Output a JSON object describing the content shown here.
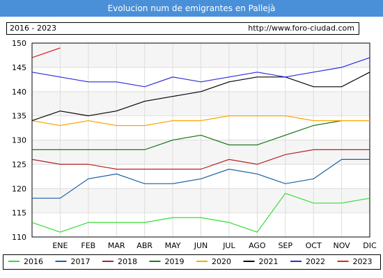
{
  "header": {
    "title": "Evolucion num de emigrantes en Pallejà"
  },
  "info": {
    "range": "2016 - 2023",
    "url": "http://www.foro-ciudad.com"
  },
  "chart_data": {
    "type": "line",
    "title": "Evolucion num de emigrantes en Pallejà",
    "xlabel": "",
    "ylabel": "",
    "categories": [
      "ENE",
      "FEB",
      "MAR",
      "ABR",
      "MAY",
      "JUN",
      "JUL",
      "AGO",
      "SEP",
      "OCT",
      "NOV",
      "DIC"
    ],
    "ylim": [
      110,
      150
    ],
    "yticks": [
      110,
      115,
      120,
      125,
      130,
      135,
      140,
      145,
      150
    ],
    "grid": true,
    "legend_position": "bottom",
    "series": [
      {
        "name": "2016",
        "color": "#33dd33",
        "values": [
          111,
          113,
          113,
          113,
          114,
          114,
          113,
          111,
          119,
          117,
          117,
          118
        ],
        "start": 113
      },
      {
        "name": "2017",
        "color": "#1a5fa3",
        "values": [
          118,
          122,
          123,
          121,
          121,
          122,
          124,
          123,
          121,
          122,
          126,
          126
        ],
        "start": 118
      },
      {
        "name": "2018",
        "color": "#b22222",
        "values": [
          125,
          125,
          124,
          124,
          124,
          124,
          126,
          125,
          127,
          128,
          128,
          128
        ],
        "start": 126
      },
      {
        "name": "2019",
        "color": "#1a7a1a",
        "values": [
          128,
          128,
          128,
          128,
          130,
          131,
          129,
          129,
          131,
          133,
          134,
          null
        ],
        "start": 128
      },
      {
        "name": "2020",
        "color": "#ffa500",
        "values": [
          133,
          134,
          133,
          133,
          134,
          134,
          135,
          135,
          135,
          134,
          134,
          134
        ],
        "start": 134
      },
      {
        "name": "2021",
        "color": "#000000",
        "values": [
          136,
          135,
          136,
          138,
          139,
          140,
          142,
          143,
          143,
          141,
          141,
          144
        ],
        "start": 134
      },
      {
        "name": "2022",
        "color": "#2a2ae0",
        "values": [
          143,
          142,
          142,
          141,
          143,
          142,
          143,
          144,
          143,
          144,
          145,
          147
        ],
        "start": 144
      },
      {
        "name": "2023",
        "color": "#dd2222",
        "values": [
          149,
          null,
          null,
          null,
          null,
          null,
          null,
          null,
          null,
          null,
          null,
          null
        ],
        "start": 147
      }
    ]
  }
}
